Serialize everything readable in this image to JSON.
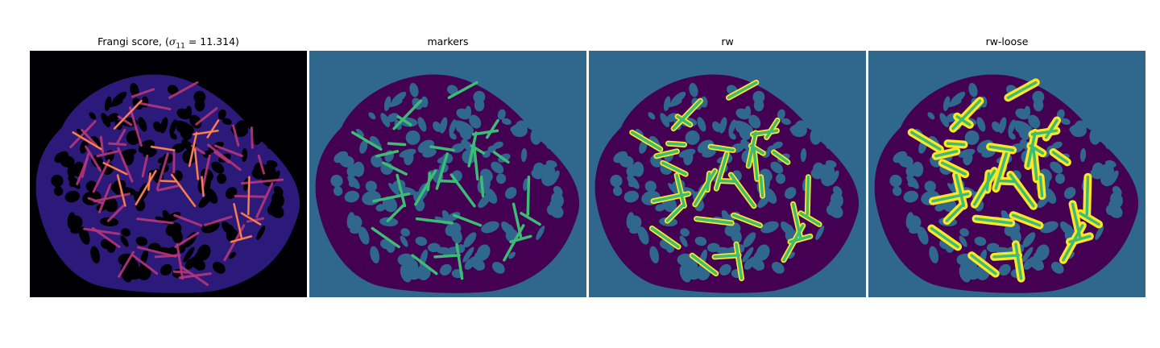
{
  "panels": [
    {
      "title_prefix": "Frangi score, (",
      "title_sigma": "σ",
      "title_sub": "11",
      "title_suffix": " = 11.314)",
      "colormap": "magma"
    },
    {
      "title": "markers",
      "colormap": "viridis"
    },
    {
      "title": "rw",
      "colormap": "viridis"
    },
    {
      "title": "rw-loose",
      "colormap": "viridis"
    }
  ],
  "colors": {
    "background_teal": "#30678d",
    "vessel_purple": "#440154",
    "marker_green": "#3dbc74",
    "label_yellow": "#fde725",
    "frangi_black": "#000004",
    "frangi_indigo": "#2c1a7a",
    "frangi_magenta": "#b5367a",
    "frangi_orange": "#f98e3f"
  }
}
